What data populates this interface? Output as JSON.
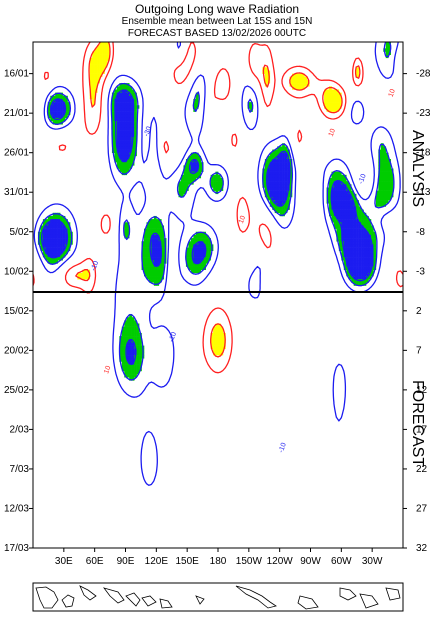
{
  "chart_data": {
    "type": "heatmap",
    "title": "Outgoing Long wave Radiation",
    "subtitle": "Ensemble mean between  Lat 15S and 15N",
    "subtitle2": "FORECAST  BASED 13/02/2026 00UTC",
    "x_ticks": [
      "30E",
      "60E",
      "90E",
      "120E",
      "150E",
      "180",
      "150W",
      "120W",
      "90W",
      "60W",
      "30W"
    ],
    "x_tick_lon": [
      30,
      60,
      90,
      120,
      150,
      180,
      210,
      240,
      270,
      300,
      330
    ],
    "x_range": [
      0,
      360
    ],
    "y_ticks_left": [
      "16/01",
      "21/01",
      "26/01",
      "31/01",
      "5/02",
      "10/02",
      "15/02",
      "20/02",
      "25/02",
      "2/03",
      "7/03",
      "12/03",
      "17/03"
    ],
    "y_ticks_right": [
      "-28",
      "-23",
      "-18",
      "-13",
      "-8",
      "-3",
      "2",
      "7",
      "12",
      "17",
      "22",
      "27",
      "32"
    ],
    "y_tick_day": [
      -28,
      -23,
      -18,
      -13,
      -8,
      -3,
      2,
      7,
      12,
      17,
      22,
      27,
      32
    ],
    "y_range": [
      -32,
      32
    ],
    "forecast_start_day": 0,
    "section_labels": {
      "analysis": "ANALYSIS",
      "forecast": "FORECAST"
    },
    "contour_labels": [
      "10",
      "-10",
      "-30"
    ],
    "legend": "none",
    "grid": false,
    "colors": {
      "positive_contour": "#ff2020",
      "negative_contour": "#1c1cf0",
      "fill_positive": "#ffff00",
      "fill_negative_1": "#00cc00",
      "fill_negative_2": "#1c1cf0",
      "forecast_line": "#000000"
    },
    "anomaly_centers": [
      {
        "lon": 95,
        "day": 8,
        "value": -30
      },
      {
        "lon": 130,
        "day": 8,
        "value": -25
      },
      {
        "lon": 90,
        "day": -21,
        "value": -30
      },
      {
        "lon": 180,
        "day": 6,
        "value": 30
      },
      {
        "lon": 60,
        "day": -24,
        "value": 25
      },
      {
        "lon": 145,
        "day": -14,
        "value": -25
      },
      {
        "lon": 235,
        "day": -15,
        "value": -30
      },
      {
        "lon": 300,
        "day": -12,
        "value": -30
      },
      {
        "lon": 15,
        "day": -6,
        "value": -20
      }
    ]
  },
  "map_strip": {
    "name": "world-outline-map"
  }
}
